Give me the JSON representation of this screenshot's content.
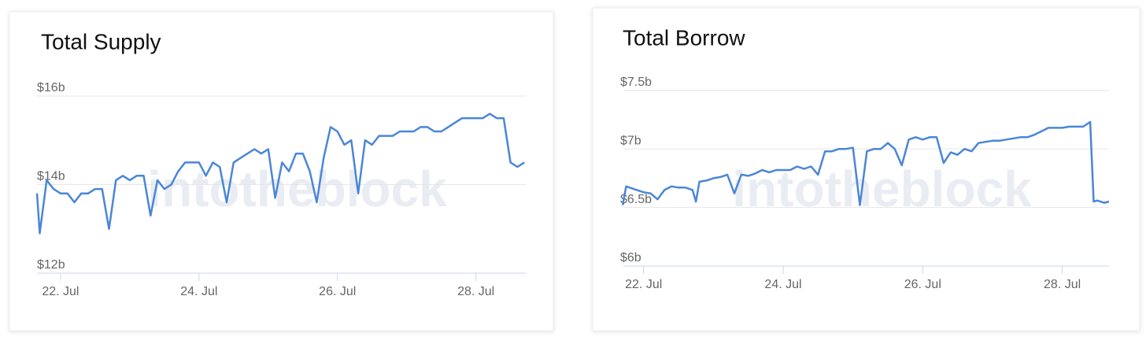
{
  "chart_data": [
    {
      "type": "line",
      "title": "Total Supply",
      "watermark": "intotheblock",
      "x": [
        21.66,
        21.7,
        21.8,
        21.9,
        22.0,
        22.1,
        22.2,
        22.3,
        22.4,
        22.5,
        22.6,
        22.7,
        22.8,
        22.9,
        23.0,
        23.1,
        23.2,
        23.3,
        23.4,
        23.5,
        23.6,
        23.7,
        23.8,
        23.9,
        24.0,
        24.1,
        24.2,
        24.3,
        24.4,
        24.5,
        24.6,
        24.7,
        24.8,
        24.9,
        25.0,
        25.1,
        25.2,
        25.3,
        25.4,
        25.5,
        25.6,
        25.7,
        25.8,
        25.9,
        26.0,
        26.1,
        26.2,
        26.3,
        26.4,
        26.5,
        26.6,
        26.7,
        26.8,
        26.9,
        27.0,
        27.1,
        27.2,
        27.3,
        27.4,
        27.5,
        27.6,
        27.7,
        27.8,
        27.9,
        28.0,
        28.1,
        28.2,
        28.3,
        28.4,
        28.5,
        28.6,
        28.7
      ],
      "series": [
        {
          "color": "#4a86d8",
          "values": [
            13.8,
            12.9,
            14.1,
            13.9,
            13.8,
            13.8,
            13.6,
            13.8,
            13.8,
            13.9,
            13.9,
            13.0,
            14.1,
            14.2,
            14.1,
            14.2,
            14.2,
            13.3,
            14.1,
            13.9,
            14.0,
            14.3,
            14.5,
            14.5,
            14.5,
            14.2,
            14.5,
            14.4,
            13.6,
            14.5,
            14.6,
            14.7,
            14.8,
            14.7,
            14.8,
            13.7,
            14.5,
            14.3,
            14.7,
            14.7,
            14.3,
            13.6,
            14.6,
            15.3,
            15.2,
            14.9,
            15.0,
            13.8,
            15.0,
            14.9,
            15.1,
            15.1,
            15.1,
            15.2,
            15.2,
            15.2,
            15.3,
            15.3,
            15.2,
            15.2,
            15.3,
            15.4,
            15.5,
            15.5,
            15.5,
            15.5,
            15.6,
            15.5,
            15.5,
            14.5,
            14.4,
            14.5
          ]
        }
      ],
      "xlim": [
        21.66,
        28.72
      ],
      "xticks": [
        {
          "value": 22,
          "label": "22. Jul"
        },
        {
          "value": 24,
          "label": "24. Jul"
        },
        {
          "value": 26,
          "label": "26. Jul"
        },
        {
          "value": 28,
          "label": "28. Jul"
        }
      ],
      "ylim": [
        12,
        16.4
      ],
      "yticks": [
        {
          "value": 12,
          "label": "$12b"
        },
        {
          "value": 14,
          "label": "$14b"
        },
        {
          "value": 16,
          "label": "$16b"
        }
      ],
      "grid": true
    },
    {
      "type": "line",
      "title": "Total Borrow",
      "watermark": "intotheblock",
      "x": [
        21.7,
        21.75,
        21.9,
        22.0,
        22.1,
        22.2,
        22.3,
        22.4,
        22.5,
        22.6,
        22.7,
        22.75,
        22.8,
        22.9,
        23.0,
        23.1,
        23.2,
        23.3,
        23.4,
        23.5,
        23.6,
        23.7,
        23.8,
        23.9,
        24.0,
        24.1,
        24.2,
        24.3,
        24.4,
        24.5,
        24.6,
        24.7,
        24.8,
        24.9,
        25.0,
        25.1,
        25.2,
        25.3,
        25.4,
        25.5,
        25.6,
        25.7,
        25.8,
        25.9,
        26.0,
        26.1,
        26.2,
        26.3,
        26.4,
        26.5,
        26.6,
        26.7,
        26.8,
        26.9,
        27.0,
        27.1,
        27.2,
        27.3,
        27.4,
        27.5,
        27.6,
        27.7,
        27.8,
        27.9,
        28.0,
        28.1,
        28.2,
        28.3,
        28.4,
        28.45,
        28.5,
        28.6,
        28.67
      ],
      "series": [
        {
          "color": "#4a86d8",
          "values": [
            6.52,
            6.68,
            6.65,
            6.63,
            6.62,
            6.57,
            6.65,
            6.68,
            6.67,
            6.67,
            6.65,
            6.55,
            6.72,
            6.73,
            6.75,
            6.76,
            6.78,
            6.62,
            6.78,
            6.77,
            6.79,
            6.82,
            6.8,
            6.82,
            6.82,
            6.82,
            6.85,
            6.83,
            6.85,
            6.78,
            6.98,
            6.98,
            7.0,
            7.0,
            7.01,
            6.52,
            6.98,
            7.0,
            7.0,
            7.05,
            7.0,
            6.86,
            7.08,
            7.1,
            7.08,
            7.1,
            7.1,
            6.88,
            6.97,
            6.95,
            7.0,
            6.98,
            7.05,
            7.06,
            7.07,
            7.07,
            7.08,
            7.09,
            7.1,
            7.1,
            7.12,
            7.15,
            7.18,
            7.18,
            7.18,
            7.19,
            7.19,
            7.19,
            7.23,
            6.55,
            6.56,
            6.54,
            6.55
          ]
        }
      ],
      "xlim": [
        21.71,
        28.67
      ],
      "xticks": [
        {
          "value": 22,
          "label": "22. Jul"
        },
        {
          "value": 24,
          "label": "24. Jul"
        },
        {
          "value": 26,
          "label": "26. Jul"
        },
        {
          "value": 28,
          "label": "28. Jul"
        }
      ],
      "ylim": [
        6,
        7.7
      ],
      "yticks": [
        {
          "value": 6,
          "label": "$6b"
        },
        {
          "value": 6.5,
          "label": "$6.5b"
        },
        {
          "value": 7,
          "label": "$7b"
        },
        {
          "value": 7.5,
          "label": "$7.5b"
        }
      ],
      "grid": true
    }
  ]
}
